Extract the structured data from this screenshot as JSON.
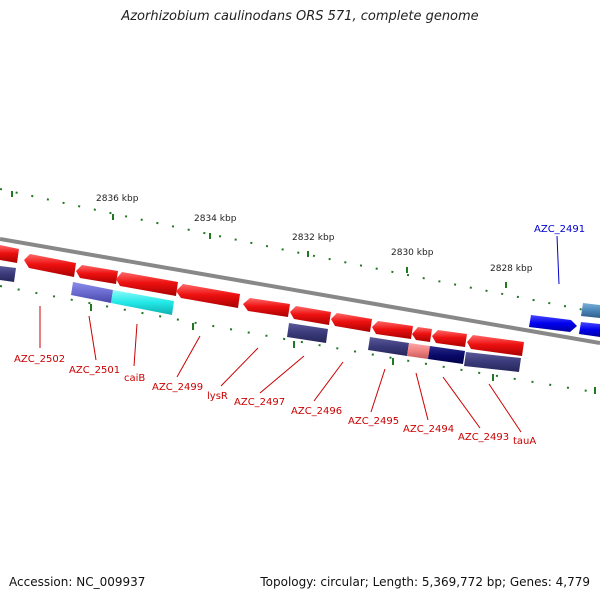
{
  "title": "Azorhizobium caulinodans ORS 571, complete genome",
  "footer": {
    "accession": "Accession: NC_009937",
    "summary": "Topology: circular; Length: 5,369,772 bp; Genes: 4,779"
  },
  "ruler": [
    "2836 kbp",
    "2834 kbp",
    "2832 kbp",
    "2830 kbp",
    "2828 kbp"
  ],
  "genes": [
    {
      "id": "AZC_2502",
      "label": "AZC_2502"
    },
    {
      "id": "AZC_2501",
      "label": "AZC_2501"
    },
    {
      "id": "caiB",
      "label": "caiB"
    },
    {
      "id": "AZC_2499",
      "label": "AZC_2499"
    },
    {
      "id": "lysR",
      "label": "lysR"
    },
    {
      "id": "AZC_2497",
      "label": "AZC_2497"
    },
    {
      "id": "AZC_2496",
      "label": "AZC_2496"
    },
    {
      "id": "AZC_2495",
      "label": "AZC_2495"
    },
    {
      "id": "AZC_2494",
      "label": "AZC_2494"
    },
    {
      "id": "AZC_2493",
      "label": "AZC_2493"
    },
    {
      "id": "tauA",
      "label": "tauA"
    },
    {
      "id": "AZC_2491",
      "label": "AZC_2491"
    }
  ],
  "colors": {
    "gene_red": "#ee1111",
    "gene_blue": "#0000ee",
    "gene_navy": "#3a3a7a",
    "gene_purple": "#6a6ad0",
    "gene_cyan": "#22e8e8",
    "gene_pink": "#f08080",
    "gene_darknavy": "#0a0a6a",
    "gene_steel": "#4a86b8",
    "backbone": "#888888",
    "gc_skew": "#227722",
    "label_red": "#cc0000",
    "label_blue": "#0000cc"
  }
}
